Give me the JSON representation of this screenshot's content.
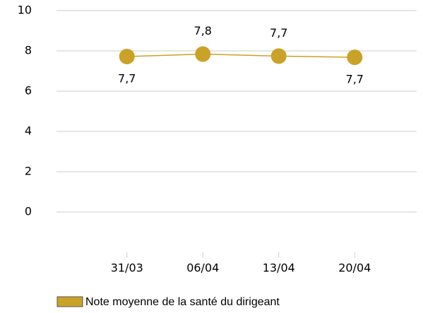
{
  "chart_data": {
    "type": "line",
    "categories": [
      "31/03",
      "06/04",
      "13/04",
      "20/04"
    ],
    "series": [
      {
        "name": "Note moyenne de la santé du dirigeant",
        "color": "#c9a227",
        "values": [
          7.72,
          7.84,
          7.74,
          7.68
        ],
        "value_labels": [
          "7,7",
          "7,8",
          "7,7",
          "7,7"
        ]
      }
    ],
    "ylim": [
      -2,
      10
    ],
    "yticks": [
      0,
      2,
      4,
      6,
      8,
      10
    ],
    "grid": true
  }
}
